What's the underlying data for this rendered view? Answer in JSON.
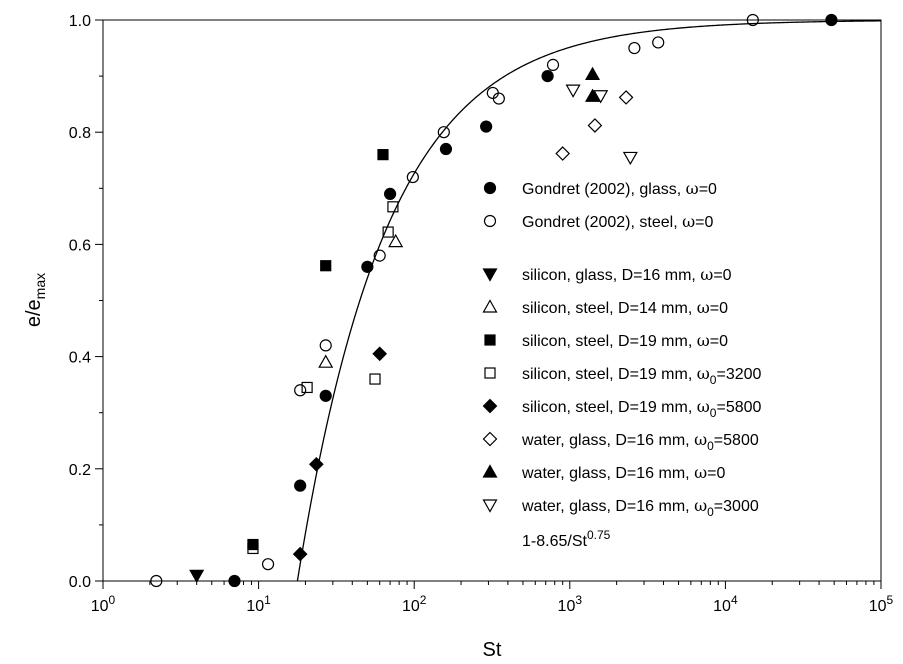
{
  "chart_data": {
    "type": "scatter",
    "xlabel": "St",
    "ylabel_main": "e/e",
    "ylabel_sub": "max",
    "xscale": "log",
    "xlim": [
      1,
      100000
    ],
    "ylim": [
      0,
      1
    ],
    "grid": false,
    "legend_position": "right",
    "x_ticks": [
      {
        "base": "10",
        "exp": "0",
        "value": 1
      },
      {
        "base": "10",
        "exp": "1",
        "value": 10
      },
      {
        "base": "10",
        "exp": "2",
        "value": 100
      },
      {
        "base": "10",
        "exp": "3",
        "value": 1000
      },
      {
        "base": "10",
        "exp": "4",
        "value": 10000
      },
      {
        "base": "10",
        "exp": "5",
        "value": 100000
      }
    ],
    "y_ticks": [
      "0.0",
      "0.2",
      "0.4",
      "0.6",
      "0.8",
      "1.0"
    ],
    "series": [
      {
        "id": "s1",
        "name_parts": [
          "Gondret (2002), glass, ",
          "ω",
          "=0",
          "",
          ""
        ],
        "marker": "circle",
        "fill": "#000000",
        "points": [
          [
            7,
            0.0
          ],
          [
            18.5,
            0.17
          ],
          [
            27,
            0.33
          ],
          [
            50,
            0.56
          ],
          [
            70,
            0.69
          ],
          [
            160,
            0.77
          ],
          [
            290,
            0.81
          ],
          [
            720,
            0.9
          ],
          [
            48000,
            1.0
          ]
        ]
      },
      {
        "id": "s2",
        "name_parts": [
          "Gondret (2002), steel, ",
          "ω",
          "=0",
          "",
          ""
        ],
        "marker": "circle",
        "fill": "none",
        "points": [
          [
            2.2,
            0.0
          ],
          [
            11.5,
            0.03
          ],
          [
            18.5,
            0.34
          ],
          [
            27,
            0.42
          ],
          [
            60,
            0.58
          ],
          [
            98,
            0.72
          ],
          [
            155,
            0.8
          ],
          [
            320,
            0.87
          ],
          [
            350,
            0.86
          ],
          [
            780,
            0.92
          ],
          [
            2600,
            0.95
          ],
          [
            3700,
            0.96
          ],
          [
            15000,
            1.0
          ]
        ]
      },
      {
        "id": "s3",
        "name_parts": [
          "silicon, glass, D=16 mm, ",
          "ω",
          "=0",
          "",
          ""
        ],
        "marker": "triangle-down",
        "fill": "#000000",
        "points": [
          [
            4,
            0.01
          ]
        ]
      },
      {
        "id": "s4",
        "name_parts": [
          "silicon, steel, D=14 mm, ",
          "ω",
          "=0",
          "",
          ""
        ],
        "marker": "triangle-up",
        "fill": "none",
        "points": [
          [
            27,
            0.39
          ],
          [
            76,
            0.605
          ]
        ]
      },
      {
        "id": "s5",
        "name_parts": [
          "silicon, steel, D=19 mm, ",
          "ω",
          "=0",
          "",
          ""
        ],
        "marker": "square",
        "fill": "#000000",
        "points": [
          [
            9.2,
            0.065
          ],
          [
            27,
            0.562
          ],
          [
            63,
            0.76
          ]
        ]
      },
      {
        "id": "s6",
        "name_parts": [
          "silicon, steel, D=19 mm, ",
          "ω",
          "",
          "0",
          "=3200"
        ],
        "marker": "square",
        "fill": "none",
        "points": [
          [
            9.2,
            0.058
          ],
          [
            20.5,
            0.345
          ],
          [
            56,
            0.36
          ],
          [
            68,
            0.622
          ],
          [
            73,
            0.667
          ]
        ]
      },
      {
        "id": "s7",
        "name_parts": [
          "silicon, steel, D=19 mm, ",
          "ω",
          "",
          "0",
          "=5800"
        ],
        "marker": "diamond",
        "fill": "#000000",
        "points": [
          [
            18.5,
            0.048
          ],
          [
            23.5,
            0.208
          ],
          [
            60,
            0.405
          ]
        ]
      },
      {
        "id": "s8",
        "name_parts": [
          "water, glass, D=16 mm, ",
          "ω",
          "",
          "0",
          "=5800"
        ],
        "marker": "diamond",
        "fill": "none",
        "points": [
          [
            900,
            0.762
          ],
          [
            1450,
            0.812
          ],
          [
            2300,
            0.862
          ]
        ]
      },
      {
        "id": "s9",
        "name_parts": [
          "water, glass, D=16 mm, ",
          "ω",
          "=0",
          "",
          ""
        ],
        "marker": "triangle-up",
        "fill": "#000000",
        "points": [
          [
            1400,
            0.903
          ],
          [
            1400,
            0.864
          ]
        ]
      },
      {
        "id": "s10",
        "name_parts": [
          "water, glass, D=16 mm, ",
          "ω",
          "",
          "0",
          "=3000"
        ],
        "marker": "triangle-down",
        "fill": "none",
        "points": [
          [
            1050,
            0.875
          ],
          [
            1580,
            0.865
          ],
          [
            2450,
            0.755
          ]
        ]
      }
    ],
    "fit_curve": {
      "label": "1-8.65/St",
      "label_exp": "0.75",
      "coefficient": 8.65,
      "exponent": 0.75
    }
  }
}
